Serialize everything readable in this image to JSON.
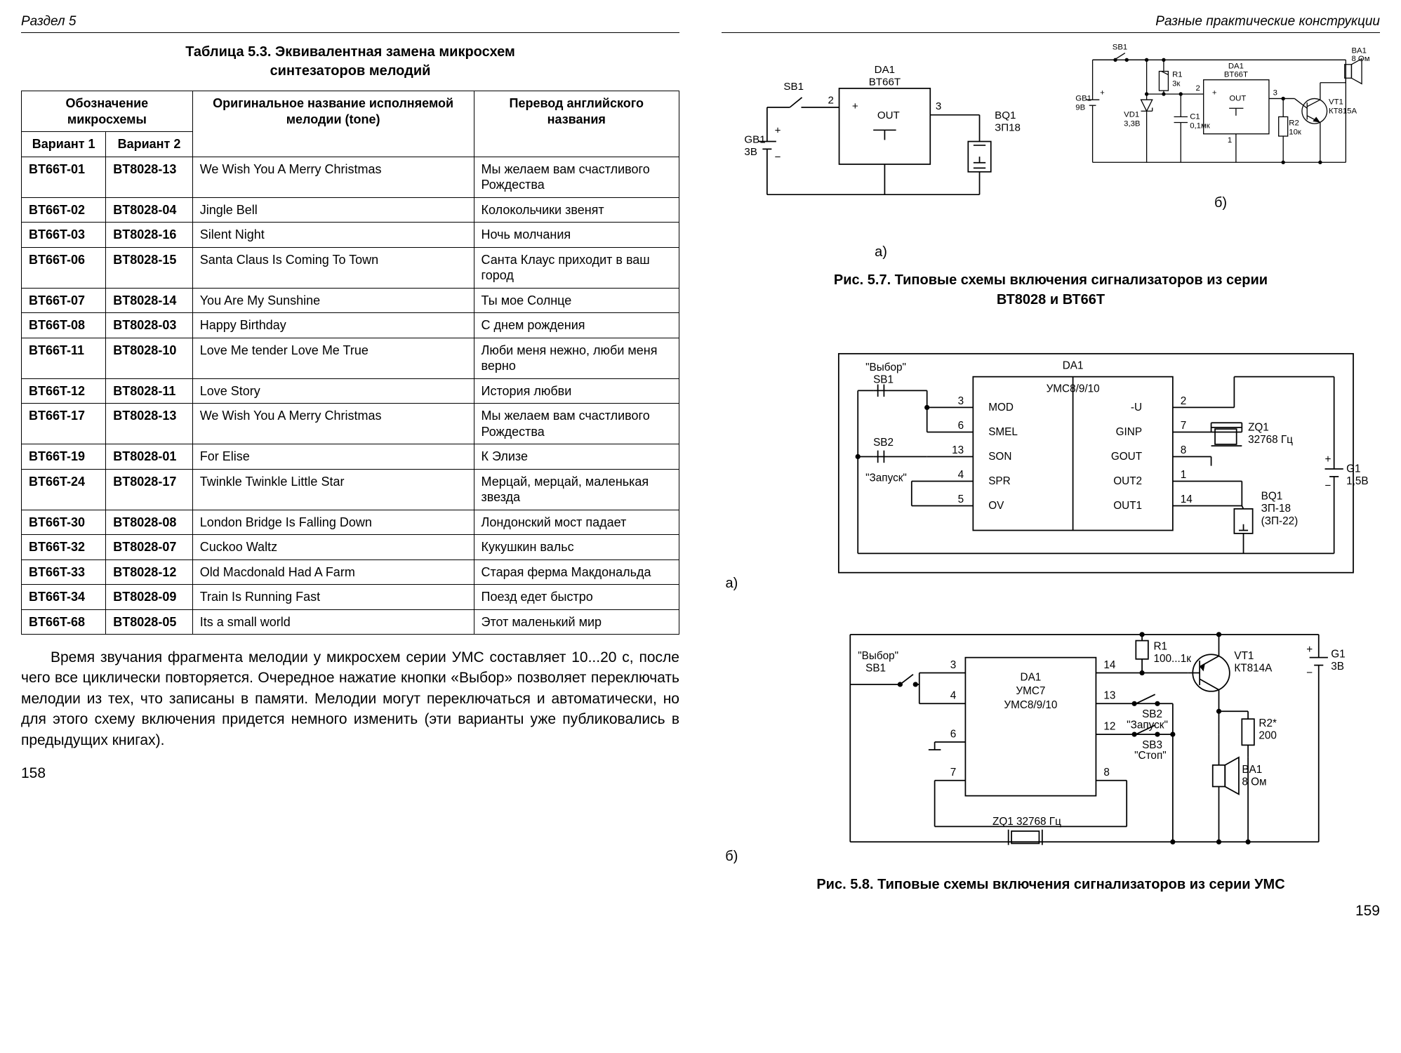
{
  "left_page": {
    "header": "Раздел 5",
    "page_number": "158",
    "table_caption_line1": "Таблица 5.3. Эквивалентная замена микросхем",
    "table_caption_line2": "синтезаторов мелодий",
    "table": {
      "header_group1": "Обозначение микросхемы",
      "header_col1": "Вариант 1",
      "header_col2": "Вариант 2",
      "header_col3": "Оригинальное название исполняемой мелодии (tone)",
      "header_col4": "Перевод английского названия",
      "rows": [
        {
          "c1": "BT66T-01",
          "c2": "BT8028-13",
          "c3": "We Wish You A Merry Christmas",
          "c4": "Мы желаем вам счастливого Рождества"
        },
        {
          "c1": "BT66T-02",
          "c2": "BT8028-04",
          "c3": "Jingle Bell",
          "c4": "Колокольчики звенят"
        },
        {
          "c1": "BT66T-03",
          "c2": "BT8028-16",
          "c3": "Silent Night",
          "c4": "Ночь молчания"
        },
        {
          "c1": "BT66T-06",
          "c2": "BT8028-15",
          "c3": "Santa Claus Is Coming To Town",
          "c4": "Санта Клаус приходит в ваш город"
        },
        {
          "c1": "BT66T-07",
          "c2": "BT8028-14",
          "c3": "You Are My Sunshine",
          "c4": "Ты мое Солнце"
        },
        {
          "c1": "BT66T-08",
          "c2": "BT8028-03",
          "c3": "Happy Birthday",
          "c4": "С днем рождения"
        },
        {
          "c1": "BT66T-11",
          "c2": "BT8028-10",
          "c3": "Love Me tender Love Me True",
          "c4": "Люби меня нежно, люби меня верно"
        },
        {
          "c1": "BT66T-12",
          "c2": "BT8028-11",
          "c3": "Love Story",
          "c4": "История любви"
        },
        {
          "c1": "BT66T-17",
          "c2": "BT8028-13",
          "c3": "We Wish You A Merry Christmas",
          "c4": "Мы желаем вам счастливого Рождества"
        },
        {
          "c1": "BT66T-19",
          "c2": "BT8028-01",
          "c3": "For Elise",
          "c4": "К Элизе"
        },
        {
          "c1": "BT66T-24",
          "c2": "BT8028-17",
          "c3": "Twinkle Twinkle Little Star",
          "c4": "Мерцай, мерцай, маленькая звезда"
        },
        {
          "c1": "BT66T-30",
          "c2": "BT8028-08",
          "c3": "London Bridge Is Falling Down",
          "c4": "Лондонский мост падает"
        },
        {
          "c1": "BT66T-32",
          "c2": "BT8028-07",
          "c3": "Cuckoo Waltz",
          "c4": "Кукушкин вальс"
        },
        {
          "c1": "BT66T-33",
          "c2": "BT8028-12",
          "c3": "Old Macdonald Had A Farm",
          "c4": "Старая ферма Макдональда"
        },
        {
          "c1": "BT66T-34",
          "c2": "BT8028-09",
          "c3": "Train Is Running Fast",
          "c4": "Поезд едет быстро"
        },
        {
          "c1": "BT66T-68",
          "c2": "BT8028-05",
          "c3": "Its a small world",
          "c4": "Этот маленький мир"
        }
      ]
    },
    "body_text": "Время звучания фрагмента мелодии у микросхем серии УМС составляет 10...20 с, после чего все циклически повторяется. Очередное нажатие кнопки «Выбор» позволяет переключать мелодии из тех, что записаны в памяти. Мелодии могут переключаться и автоматически, но для этого схему включения придется немного изменить (эти варианты уже публиковались в предыдущих книгах)."
  },
  "right_page": {
    "header": "Разные практические конструкции",
    "page_number": "159",
    "fig57_caption_line1": "Рис. 5.7. Типовые схемы включения сигнализаторов из серии",
    "fig57_caption_line2": "ВТ8028 и ВТ66Т",
    "fig58_caption": "Рис. 5.8. Типовые схемы включения сигнализаторов из серии УМС",
    "schematics": {
      "s57a": {
        "type": "schematic",
        "chip": "DA1 BT66T",
        "parts": [
          {
            "ref": "SB1",
            "kind": "switch"
          },
          {
            "ref": "GB1",
            "val": "3В",
            "kind": "battery"
          },
          {
            "ref": "BQ1",
            "val": "ЗП18",
            "kind": "piezo"
          }
        ],
        "pins": [
          "2",
          "+",
          "OUT",
          "⊥",
          "3"
        ],
        "sub": "а)"
      },
      "s57b": {
        "type": "schematic",
        "chip": "DA1 BT66T",
        "parts": [
          {
            "ref": "SB1",
            "kind": "switch"
          },
          {
            "ref": "GB1",
            "val": "9В",
            "kind": "battery"
          },
          {
            "ref": "VD1",
            "val": "3,3В",
            "kind": "zener"
          },
          {
            "ref": "C1",
            "val": "0,1мк",
            "kind": "capacitor"
          },
          {
            "ref": "R1",
            "val": "3к",
            "kind": "resistor"
          },
          {
            "ref": "R2",
            "val": "10к",
            "kind": "resistor"
          },
          {
            "ref": "VT1",
            "val": "КТ815А",
            "kind": "transistor"
          },
          {
            "ref": "BA1",
            "val": "8 Ом",
            "kind": "speaker"
          }
        ],
        "pins": [
          "2",
          "+",
          "OUT",
          "⊥",
          "3",
          "1"
        ],
        "sub": "б)"
      },
      "s58a": {
        "type": "schematic",
        "chip": "DA1 УМС8/9/10",
        "pins_left": [
          [
            "3",
            "MOD"
          ],
          [
            "6",
            "SMEL"
          ],
          [
            "13",
            "SON"
          ],
          [
            "4",
            "SPR"
          ],
          [
            "5",
            "OV"
          ]
        ],
        "pins_right": [
          [
            "-U",
            "2"
          ],
          [
            "GINP",
            "7"
          ],
          [
            "GOUT",
            "8"
          ],
          [
            "OUT2",
            "1"
          ],
          [
            "OUT1",
            "14"
          ]
        ],
        "parts": [
          {
            "ref": "SB1",
            "label": "\"Выбор\"",
            "kind": "button"
          },
          {
            "ref": "SB2",
            "label": "\"Запуск\"",
            "kind": "button"
          },
          {
            "ref": "ZQ1",
            "val": "32768 Гц",
            "kind": "crystal"
          },
          {
            "ref": "BQ1",
            "val": "ЗП-18 (ЗП-22)",
            "kind": "piezo"
          },
          {
            "ref": "G1",
            "val": "1,5В",
            "kind": "battery"
          }
        ],
        "sub": "а)"
      },
      "s58b": {
        "type": "schematic",
        "chip": "DA1 УМС7 УМС8/9/10",
        "pins_left": [
          "3",
          "4",
          "6",
          "7"
        ],
        "pins_right": [
          "14",
          "13",
          "12",
          "8"
        ],
        "parts": [
          {
            "ref": "SB1",
            "label": "\"Выбор\"",
            "kind": "button"
          },
          {
            "ref": "SB2",
            "label": "\"Запуск\"",
            "kind": "button"
          },
          {
            "ref": "SB3",
            "label": "\"Стоп\"",
            "kind": "button"
          },
          {
            "ref": "R1",
            "val": "100...1к",
            "kind": "resistor"
          },
          {
            "ref": "R2*",
            "val": "200",
            "kind": "resistor"
          },
          {
            "ref": "VT1",
            "val": "КТ814А",
            "kind": "transistor"
          },
          {
            "ref": "BA1",
            "val": "8 Ом",
            "kind": "speaker"
          },
          {
            "ref": "G1",
            "val": "3В",
            "kind": "battery"
          },
          {
            "ref": "ZQ1",
            "val": "32768 Гц",
            "kind": "crystal"
          }
        ],
        "sub": "б)"
      }
    }
  },
  "colors": {
    "stroke": "#000000",
    "fill": "#ffffff"
  }
}
